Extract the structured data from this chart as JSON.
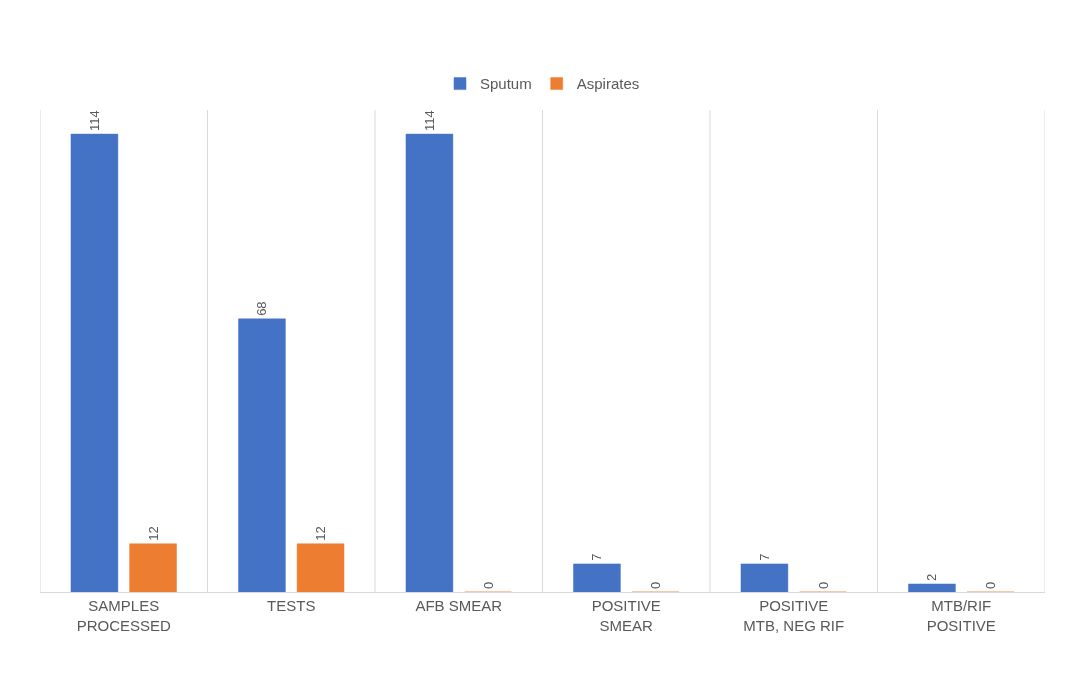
{
  "chart_data": {
    "type": "bar",
    "categories": [
      "SAMPLES PROCESSED",
      "TESTS",
      "AFB SMEAR",
      "POSITIVE SMEAR",
      "POSITIVE MTB, NEG RIF",
      "MTB/RIF POSITIVE"
    ],
    "series": [
      {
        "name": "Sputum",
        "color": "#4472c4",
        "values": [
          114,
          68,
          114,
          7,
          7,
          2
        ]
      },
      {
        "name": "Aspirates",
        "color": "#ed7d31",
        "values": [
          12,
          12,
          0,
          0,
          0,
          0
        ]
      }
    ],
    "data_labels": true,
    "grid": "x",
    "legend": "top"
  }
}
